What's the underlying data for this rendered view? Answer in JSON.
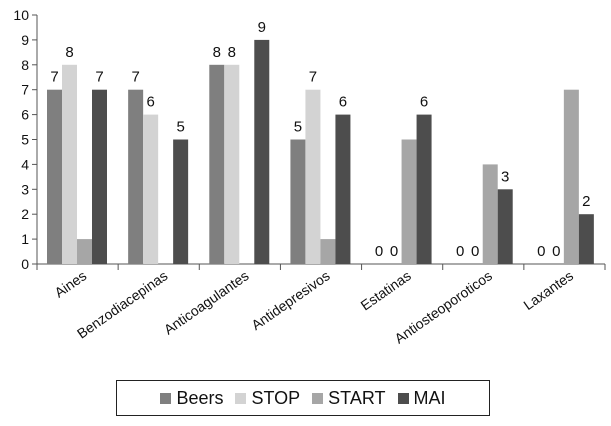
{
  "chart_data": {
    "type": "bar",
    "categories": [
      "Aines",
      "Benzodiacepinas",
      "Anticoagulantes",
      "Antidepresivos",
      "Estatinas",
      "Antiosteoporoticos",
      "Laxantes"
    ],
    "series": [
      {
        "name": "Beers",
        "color": "#7f7f7f",
        "values": [
          7,
          7,
          8,
          5,
          0,
          0,
          0
        ]
      },
      {
        "name": "STOP",
        "color": "#d3d3d3",
        "values": [
          8,
          6,
          8,
          7,
          0,
          0,
          0
        ]
      },
      {
        "name": "START",
        "color": "#a6a6a6",
        "values": [
          1,
          0,
          0,
          1,
          5,
          4,
          7
        ]
      },
      {
        "name": "MAI",
        "color": "#4d4d4d",
        "values": [
          7,
          5,
          9,
          6,
          6,
          3,
          2
        ]
      }
    ],
    "data_labels": [
      [
        {
          "series": 0,
          "text": "7"
        },
        {
          "series": 1,
          "text": "8"
        },
        {
          "series": 3,
          "text": "7"
        }
      ],
      [
        {
          "series": 0,
          "text": "7"
        },
        {
          "series": 1,
          "text": "6"
        },
        {
          "series": 3,
          "text": "5"
        }
      ],
      [
        {
          "series": 0,
          "text": "8"
        },
        {
          "series": 1,
          "text": "8"
        },
        {
          "series": 3,
          "text": "9"
        }
      ],
      [
        {
          "series": 0,
          "text": "5"
        },
        {
          "series": 1,
          "text": "7"
        },
        {
          "series": 3,
          "text": "6"
        }
      ],
      [
        {
          "series": 0,
          "text": "0"
        },
        {
          "series": 1,
          "text": "0"
        },
        {
          "series": 3,
          "text": "6"
        }
      ],
      [
        {
          "series": 0,
          "text": "0"
        },
        {
          "series": 1,
          "text": "0"
        },
        {
          "series": 3,
          "text": "3"
        }
      ],
      [
        {
          "series": 0,
          "text": "0"
        },
        {
          "series": 1,
          "text": "0"
        },
        {
          "series": 3,
          "text": "2"
        }
      ]
    ],
    "ylim": [
      0,
      10
    ],
    "yticks": [
      0,
      1,
      2,
      3,
      4,
      5,
      6,
      7,
      8,
      9,
      10
    ],
    "title": "",
    "xlabel": "",
    "ylabel": "",
    "grid": false,
    "legend_position": "bottom"
  }
}
